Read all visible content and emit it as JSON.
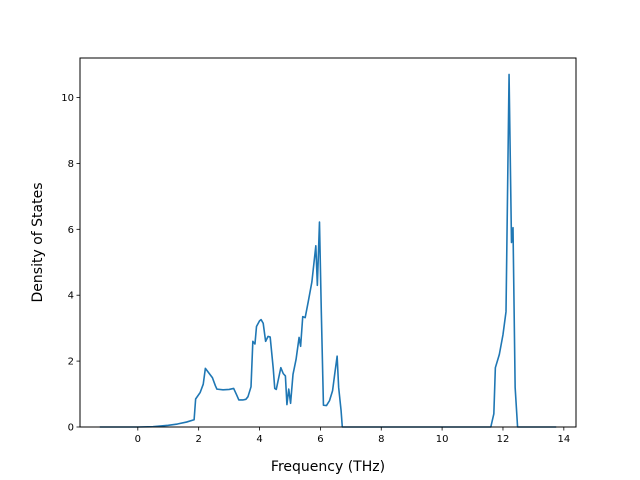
{
  "chart_data": {
    "type": "line",
    "title": "",
    "xlabel": "Frequency (THz)",
    "ylabel": "Density of States",
    "xlim": [
      -1.9,
      14.4
    ],
    "ylim": [
      0,
      11.2
    ],
    "xticks": [
      0,
      2,
      4,
      6,
      8,
      10,
      12,
      14
    ],
    "yticks": [
      0,
      2,
      4,
      6,
      8,
      10
    ],
    "grid": false,
    "legend": "none",
    "series": [
      {
        "name": "",
        "color": "#1f77b4",
        "points": [
          [
            -1.25,
            0.0
          ],
          [
            0.0,
            0.0
          ],
          [
            0.5,
            0.01
          ],
          [
            1.0,
            0.05
          ],
          [
            1.3,
            0.09
          ],
          [
            1.6,
            0.15
          ],
          [
            1.85,
            0.22
          ],
          [
            1.9,
            0.85
          ],
          [
            2.05,
            1.05
          ],
          [
            2.15,
            1.3
          ],
          [
            2.22,
            1.78
          ],
          [
            2.35,
            1.62
          ],
          [
            2.45,
            1.5
          ],
          [
            2.55,
            1.25
          ],
          [
            2.6,
            1.15
          ],
          [
            2.8,
            1.13
          ],
          [
            3.0,
            1.14
          ],
          [
            3.15,
            1.17
          ],
          [
            3.25,
            0.97
          ],
          [
            3.32,
            0.82
          ],
          [
            3.45,
            0.82
          ],
          [
            3.55,
            0.84
          ],
          [
            3.62,
            0.92
          ],
          [
            3.72,
            1.22
          ],
          [
            3.78,
            2.6
          ],
          [
            3.85,
            2.52
          ],
          [
            3.9,
            3.05
          ],
          [
            4.0,
            3.22
          ],
          [
            4.05,
            3.26
          ],
          [
            4.12,
            3.15
          ],
          [
            4.2,
            2.6
          ],
          [
            4.28,
            2.75
          ],
          [
            4.35,
            2.73
          ],
          [
            4.45,
            1.78
          ],
          [
            4.5,
            1.17
          ],
          [
            4.55,
            1.14
          ],
          [
            4.62,
            1.45
          ],
          [
            4.7,
            1.8
          ],
          [
            4.78,
            1.62
          ],
          [
            4.85,
            1.55
          ],
          [
            4.9,
            0.68
          ],
          [
            4.96,
            1.15
          ],
          [
            5.02,
            0.72
          ],
          [
            5.1,
            1.6
          ],
          [
            5.2,
            2.05
          ],
          [
            5.3,
            2.72
          ],
          [
            5.35,
            2.45
          ],
          [
            5.42,
            3.35
          ],
          [
            5.5,
            3.32
          ],
          [
            5.6,
            3.8
          ],
          [
            5.72,
            4.4
          ],
          [
            5.85,
            5.5
          ],
          [
            5.9,
            4.3
          ],
          [
            5.97,
            6.22
          ],
          [
            6.03,
            3.5
          ],
          [
            6.1,
            0.66
          ],
          [
            6.2,
            0.65
          ],
          [
            6.3,
            0.8
          ],
          [
            6.4,
            1.1
          ],
          [
            6.47,
            1.6
          ],
          [
            6.55,
            2.15
          ],
          [
            6.6,
            1.2
          ],
          [
            6.68,
            0.5
          ],
          [
            6.72,
            0.0
          ],
          [
            11.6,
            0.0
          ],
          [
            11.7,
            0.4
          ],
          [
            11.75,
            1.8
          ],
          [
            11.88,
            2.2
          ],
          [
            12.0,
            2.8
          ],
          [
            12.1,
            3.5
          ],
          [
            12.16,
            7.8
          ],
          [
            12.2,
            10.7
          ],
          [
            12.28,
            5.6
          ],
          [
            12.33,
            6.05
          ],
          [
            12.4,
            1.2
          ],
          [
            12.48,
            0.0
          ],
          [
            13.75,
            0.0
          ]
        ]
      }
    ]
  }
}
